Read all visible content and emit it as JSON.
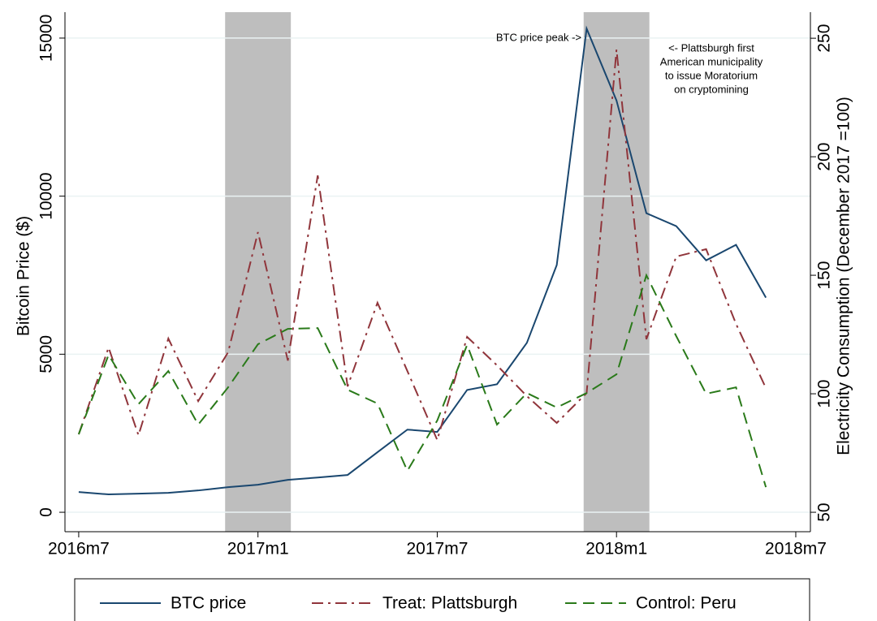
{
  "chart_data": {
    "type": "line",
    "y_title": "Bitcoin Price ($)",
    "y2_title": "Electricity Consumption (December 2017 =100)",
    "x": [
      678,
      679,
      680,
      681,
      682,
      683,
      684,
      685,
      686,
      687,
      688,
      689,
      690,
      691,
      692,
      693,
      694,
      695,
      696,
      697,
      698,
      699,
      700,
      701
    ],
    "xlim": [
      677.54,
      702.49
    ],
    "xticks": [
      {
        "value": 678,
        "label": "2016m7"
      },
      {
        "value": 684,
        "label": "2017m1"
      },
      {
        "value": 690,
        "label": "2017m7"
      },
      {
        "value": 696,
        "label": "2018m1"
      },
      {
        "value": 702,
        "label": "2018m7"
      }
    ],
    "ylim": [
      -615,
      15820
    ],
    "yticks": [
      0,
      5000,
      10000,
      15000
    ],
    "y2lim": [
      41.8,
      261
    ],
    "y2ticks": [
      50,
      100,
      150,
      200,
      250
    ],
    "grid": true,
    "shaded_x": [
      [
        682.9,
        685.1
      ],
      [
        694.9,
        697.1
      ]
    ],
    "series": [
      {
        "name": "BTC price",
        "color": "#1a476f",
        "axis": "y",
        "dash": "solid",
        "values": [
          640,
          565,
          590,
          615,
          690,
          795,
          870,
          1025,
          1100,
          1180,
          1900,
          2615,
          2540,
          3870,
          4050,
          5360,
          7820,
          15300,
          13025,
          9460,
          9050,
          7970,
          8460,
          6790
        ]
      },
      {
        "name": "Treat: Plattsburgh",
        "color": "#90353b",
        "axis": "y2",
        "dash": "dashdot",
        "values": [
          82.9,
          119.5,
          82.5,
          123.3,
          96.9,
          117.5,
          168.2,
          114,
          192.1,
          103.1,
          138.4,
          109.6,
          80.5,
          124,
          112,
          99,
          87.7,
          100.3,
          245.2,
          123,
          157.9,
          161,
          129.5,
          102.4
        ]
      },
      {
        "name": "Control: Peru",
        "color": "#2a7a1a",
        "axis": "y2",
        "dash": "dash",
        "values": [
          82.9,
          116.4,
          95.6,
          109.6,
          87,
          102.7,
          120.9,
          127.4,
          127.7,
          101.7,
          95.9,
          67.5,
          88.7,
          120.6,
          87,
          100.3,
          94.2,
          100.3,
          108.2,
          150,
          124.3,
          100,
          102.7,
          60.6
        ]
      }
    ],
    "annotations": [
      {
        "lines": [
          "BTC price peak ->"
        ]
      },
      {
        "lines": [
          "<- Plattsburgh first",
          "American municipality",
          "to issue Moratorium",
          "on cryptomining"
        ]
      }
    ]
  }
}
